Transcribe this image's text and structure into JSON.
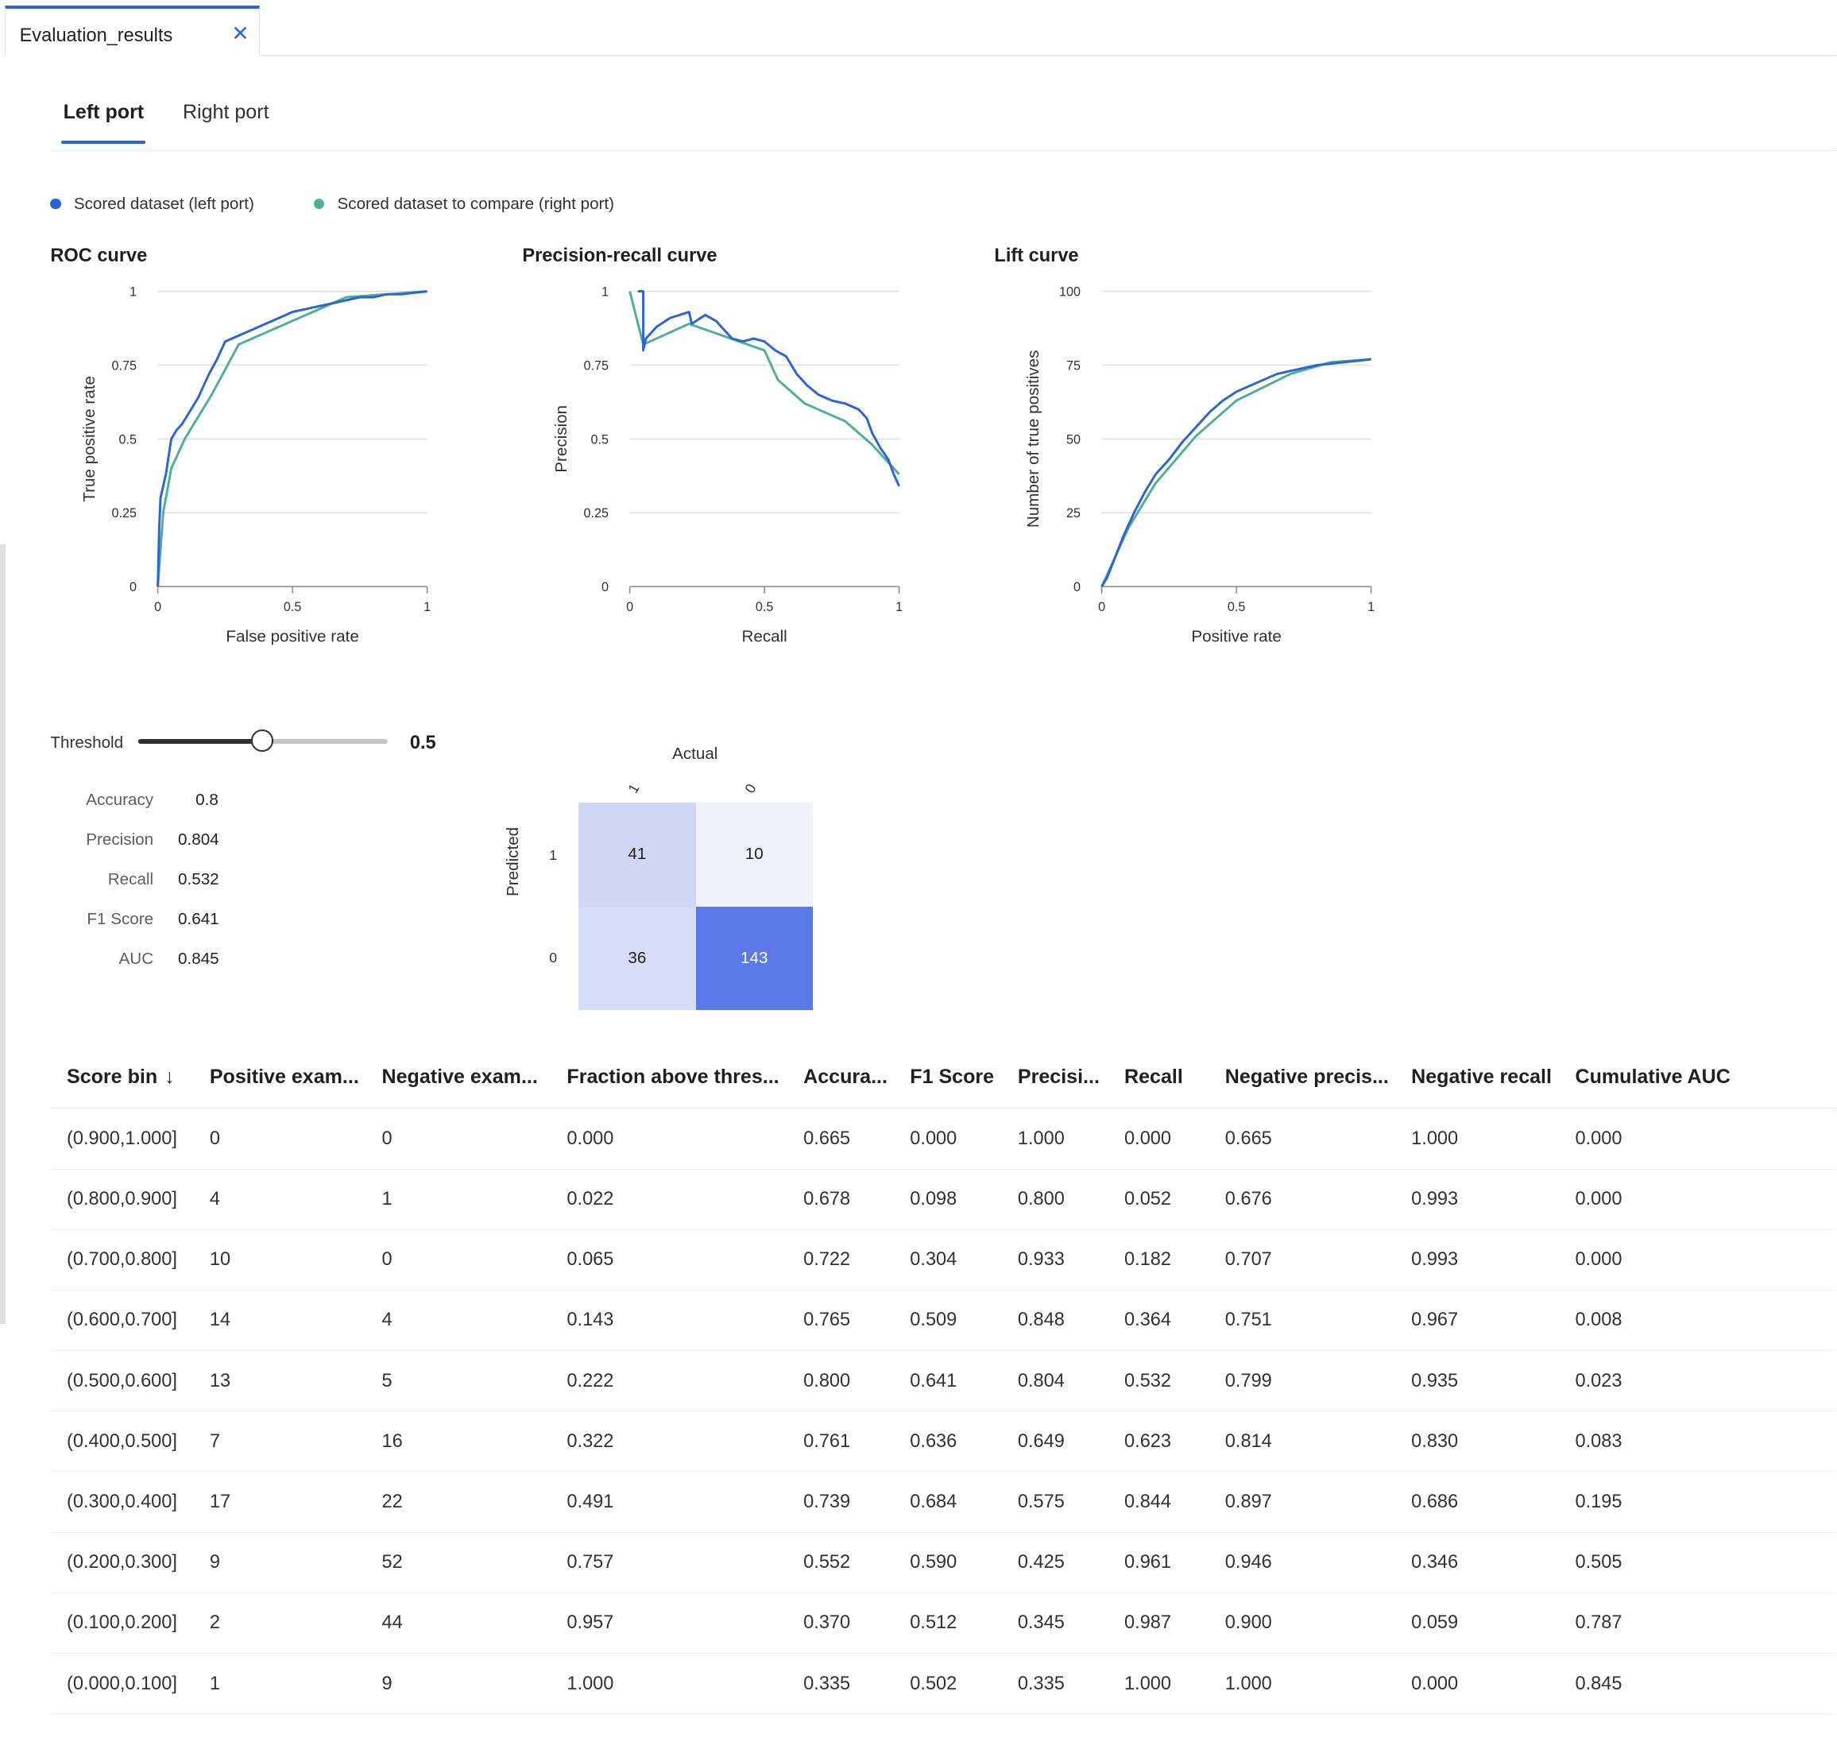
{
  "doc_tab": {
    "title": "Evaluation_results",
    "close_icon": "close-icon"
  },
  "port_tabs": [
    {
      "label": "Left port",
      "active": true
    },
    {
      "label": "Right port",
      "active": false
    }
  ],
  "legend": [
    {
      "label": "Scored dataset (left port)",
      "color": "#2b64d4"
    },
    {
      "label": "Scored dataset to compare (right port)",
      "color": "#4fae97"
    }
  ],
  "chart_data": [
    {
      "type": "line",
      "title": "ROC curve",
      "xlabel": "False positive rate",
      "ylabel": "True positive rate",
      "xlim": [
        0,
        1
      ],
      "ylim": [
        0,
        1
      ],
      "x_ticks": [
        "0",
        "0.5",
        "1"
      ],
      "y_ticks": [
        "0",
        "0.25",
        "0.5",
        "0.75",
        "1"
      ],
      "grid": true,
      "series": [
        {
          "name": "Scored dataset (left port)",
          "color": "#2b64d4",
          "points": [
            [
              0,
              0
            ],
            [
              0.005,
              0.2
            ],
            [
              0.01,
              0.3
            ],
            [
              0.02,
              0.34
            ],
            [
              0.03,
              0.38
            ],
            [
              0.04,
              0.44
            ],
            [
              0.05,
              0.5
            ],
            [
              0.07,
              0.53
            ],
            [
              0.09,
              0.55
            ],
            [
              0.11,
              0.58
            ],
            [
              0.13,
              0.61
            ],
            [
              0.15,
              0.64
            ],
            [
              0.17,
              0.68
            ],
            [
              0.19,
              0.72
            ],
            [
              0.22,
              0.77
            ],
            [
              0.25,
              0.83
            ],
            [
              0.3,
              0.85
            ],
            [
              0.35,
              0.87
            ],
            [
              0.4,
              0.89
            ],
            [
              0.45,
              0.91
            ],
            [
              0.5,
              0.93
            ],
            [
              0.55,
              0.94
            ],
            [
              0.6,
              0.95
            ],
            [
              0.65,
              0.96
            ],
            [
              0.7,
              0.97
            ],
            [
              0.75,
              0.98
            ],
            [
              0.8,
              0.98
            ],
            [
              0.85,
              0.99
            ],
            [
              0.9,
              0.99
            ],
            [
              1,
              1
            ]
          ]
        },
        {
          "name": "Scored dataset to compare (right port)",
          "color": "#4fae97",
          "points": [
            [
              0,
              0
            ],
            [
              0.02,
              0.25
            ],
            [
              0.05,
              0.4
            ],
            [
              0.1,
              0.5
            ],
            [
              0.2,
              0.65
            ],
            [
              0.3,
              0.82
            ],
            [
              0.5,
              0.9
            ],
            [
              0.7,
              0.98
            ],
            [
              1,
              1
            ]
          ]
        }
      ]
    },
    {
      "type": "line",
      "title": "Precision-recall curve",
      "xlabel": "Recall",
      "ylabel": "Precision",
      "xlim": [
        0,
        1
      ],
      "ylim": [
        0,
        1
      ],
      "x_ticks": [
        "0",
        "0.5",
        "1"
      ],
      "y_ticks": [
        "0",
        "0.25",
        "0.5",
        "0.75",
        "1"
      ],
      "grid": true,
      "series": [
        {
          "name": "Scored dataset (left port)",
          "color": "#2b64d4",
          "points": [
            [
              0.03,
              1
            ],
            [
              0.05,
              1
            ],
            [
              0.05,
              0.8
            ],
            [
              0.06,
              0.84
            ],
            [
              0.1,
              0.88
            ],
            [
              0.15,
              0.91
            ],
            [
              0.22,
              0.93
            ],
            [
              0.23,
              0.89
            ],
            [
              0.28,
              0.92
            ],
            [
              0.32,
              0.9
            ],
            [
              0.35,
              0.87
            ],
            [
              0.38,
              0.84
            ],
            [
              0.42,
              0.83
            ],
            [
              0.46,
              0.84
            ],
            [
              0.5,
              0.83
            ],
            [
              0.54,
              0.8
            ],
            [
              0.58,
              0.78
            ],
            [
              0.62,
              0.72
            ],
            [
              0.66,
              0.68
            ],
            [
              0.7,
              0.65
            ],
            [
              0.75,
              0.63
            ],
            [
              0.8,
              0.62
            ],
            [
              0.85,
              0.6
            ],
            [
              0.88,
              0.57
            ],
            [
              0.9,
              0.52
            ],
            [
              0.93,
              0.47
            ],
            [
              0.96,
              0.43
            ],
            [
              0.98,
              0.38
            ],
            [
              1,
              0.34
            ]
          ]
        },
        {
          "name": "Scored dataset to compare (right port)",
          "color": "#4fae97",
          "points": [
            [
              0,
              1
            ],
            [
              0.05,
              0.82
            ],
            [
              0.22,
              0.89
            ],
            [
              0.5,
              0.8
            ],
            [
              0.55,
              0.7
            ],
            [
              0.65,
              0.62
            ],
            [
              0.8,
              0.56
            ],
            [
              0.9,
              0.48
            ],
            [
              1,
              0.38
            ]
          ]
        }
      ]
    },
    {
      "type": "line",
      "title": "Lift curve",
      "xlabel": "Positive rate",
      "ylabel": "Number of true positives",
      "xlim": [
        0,
        1
      ],
      "ylim": [
        0,
        100
      ],
      "x_ticks": [
        "0",
        "0.5",
        "1"
      ],
      "y_ticks": [
        "0",
        "25",
        "50",
        "75",
        "100"
      ],
      "grid": true,
      "series": [
        {
          "name": "Scored dataset (left port)",
          "color": "#2b64d4",
          "points": [
            [
              0,
              0
            ],
            [
              0.02,
              3
            ],
            [
              0.05,
              10
            ],
            [
              0.08,
              17
            ],
            [
              0.12,
              25
            ],
            [
              0.16,
              32
            ],
            [
              0.2,
              38
            ],
            [
              0.25,
              43
            ],
            [
              0.3,
              49
            ],
            [
              0.35,
              54
            ],
            [
              0.4,
              59
            ],
            [
              0.45,
              63
            ],
            [
              0.5,
              66
            ],
            [
              0.55,
              68
            ],
            [
              0.6,
              70
            ],
            [
              0.65,
              72
            ],
            [
              0.7,
              73
            ],
            [
              0.8,
              75
            ],
            [
              0.9,
              76
            ],
            [
              1,
              77
            ]
          ]
        },
        {
          "name": "Scored dataset to compare (right port)",
          "color": "#4fae97",
          "points": [
            [
              0,
              0
            ],
            [
              0.05,
              10
            ],
            [
              0.1,
              20
            ],
            [
              0.2,
              35
            ],
            [
              0.35,
              51
            ],
            [
              0.5,
              63
            ],
            [
              0.7,
              72
            ],
            [
              0.85,
              76
            ],
            [
              1,
              77
            ]
          ]
        }
      ]
    }
  ],
  "threshold": {
    "label": "Threshold",
    "value": 0.5,
    "value_label": "0.5"
  },
  "metrics": [
    {
      "label": "Accuracy",
      "value": "0.8"
    },
    {
      "label": "Precision",
      "value": "0.804"
    },
    {
      "label": "Recall",
      "value": "0.532"
    },
    {
      "label": "F1 Score",
      "value": "0.641"
    },
    {
      "label": "AUC",
      "value": "0.845"
    }
  ],
  "confusion_matrix": {
    "actual_label": "Actual",
    "predicted_label": "Predicted",
    "actual_ticks": [
      "1",
      "0"
    ],
    "predicted_ticks": [
      "1",
      "0"
    ],
    "cells": [
      {
        "value": "41",
        "color": "#cfd7f5",
        "text_color": "#201f1e"
      },
      {
        "value": "10",
        "color": "#eff2fc",
        "text_color": "#201f1e"
      },
      {
        "value": "36",
        "color": "#d7ddf7",
        "text_color": "#201f1e"
      },
      {
        "value": "143",
        "color": "#5b79e8",
        "text_color": "#ffffff"
      }
    ]
  },
  "table": {
    "columns": [
      "Score bin",
      "Positive exam...",
      "Negative exam...",
      "Fraction above thres...",
      "Accura...",
      "F1 Score",
      "Precisi...",
      "Recall",
      "Negative precis...",
      "Negative recall",
      "Cumulative AUC"
    ],
    "sort_icon": "arrow-down-icon",
    "sort_glyph": "↓",
    "rows": [
      [
        "(0.900,1.000]",
        "0",
        "0",
        "0.000",
        "0.665",
        "0.000",
        "1.000",
        "0.000",
        "0.665",
        "1.000",
        "0.000"
      ],
      [
        "(0.800,0.900]",
        "4",
        "1",
        "0.022",
        "0.678",
        "0.098",
        "0.800",
        "0.052",
        "0.676",
        "0.993",
        "0.000"
      ],
      [
        "(0.700,0.800]",
        "10",
        "0",
        "0.065",
        "0.722",
        "0.304",
        "0.933",
        "0.182",
        "0.707",
        "0.993",
        "0.000"
      ],
      [
        "(0.600,0.700]",
        "14",
        "4",
        "0.143",
        "0.765",
        "0.509",
        "0.848",
        "0.364",
        "0.751",
        "0.967",
        "0.008"
      ],
      [
        "(0.500,0.600]",
        "13",
        "5",
        "0.222",
        "0.800",
        "0.641",
        "0.804",
        "0.532",
        "0.799",
        "0.935",
        "0.023"
      ],
      [
        "(0.400,0.500]",
        "7",
        "16",
        "0.322",
        "0.761",
        "0.636",
        "0.649",
        "0.623",
        "0.814",
        "0.830",
        "0.083"
      ],
      [
        "(0.300,0.400]",
        "17",
        "22",
        "0.491",
        "0.739",
        "0.684",
        "0.575",
        "0.844",
        "0.897",
        "0.686",
        "0.195"
      ],
      [
        "(0.200,0.300]",
        "9",
        "52",
        "0.757",
        "0.552",
        "0.590",
        "0.425",
        "0.961",
        "0.946",
        "0.346",
        "0.505"
      ],
      [
        "(0.100,0.200]",
        "2",
        "44",
        "0.957",
        "0.370",
        "0.512",
        "0.345",
        "0.987",
        "0.900",
        "0.059",
        "0.787"
      ],
      [
        "(0.000,0.100]",
        "1",
        "9",
        "1.000",
        "0.335",
        "0.502",
        "0.335",
        "1.000",
        "1.000",
        "0.000",
        "0.845"
      ]
    ]
  }
}
